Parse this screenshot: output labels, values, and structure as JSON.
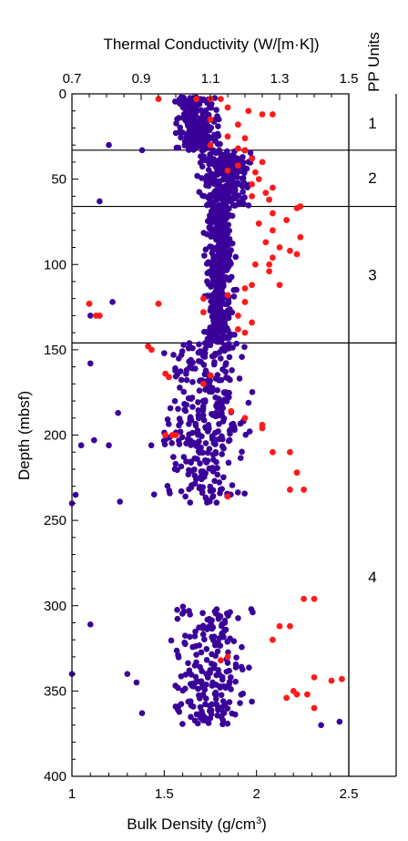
{
  "chart_data": {
    "type": "scatter",
    "xlabel_bottom": "Bulk Density (g/cm",
    "xlabel_bottom_sup": "3",
    "xlabel_bottom_end": ")",
    "xlabel_top": "Thermal Conductivity (W/[m·K])",
    "ylabel": "Depth (mbsf)",
    "pp_header": "PP Units",
    "x_bottom_range": [
      1.0,
      2.5
    ],
    "x_top_range": [
      0.7,
      1.5
    ],
    "y_range": [
      400,
      0
    ],
    "x_bottom_ticks": [
      "1",
      "1.5",
      "2",
      "2.5"
    ],
    "x_top_ticks": [
      "0.7",
      "0.9",
      "1.1",
      "1.3",
      "1.5"
    ],
    "y_ticks": [
      "0",
      "50",
      "100",
      "150",
      "200",
      "250",
      "300",
      "350",
      "400"
    ],
    "unit_boundaries": [
      33,
      66,
      146
    ],
    "units": [
      {
        "label": "1",
        "depth": 17
      },
      {
        "label": "2",
        "depth": 49
      },
      {
        "label": "3",
        "depth": 106
      },
      {
        "label": "4",
        "depth": 283
      }
    ],
    "colors": {
      "density": "#3a0099",
      "conductivity": "#ff1a1a"
    },
    "density_clusters": [
      {
        "d0": 2,
        "d1": 33,
        "mean": 1.68,
        "spread": 0.14,
        "n": 240
      },
      {
        "d0": 33,
        "d1": 66,
        "mean": 1.82,
        "spread": 0.18,
        "n": 260
      },
      {
        "d0": 66,
        "d1": 146,
        "mean": 1.8,
        "spread": 0.1,
        "n": 420
      },
      {
        "d0": 146,
        "d1": 240,
        "mean": 1.72,
        "spread": 0.3,
        "n": 320
      },
      {
        "d0": 300,
        "d1": 370,
        "mean": 1.75,
        "spread": 0.28,
        "n": 200
      }
    ],
    "density_outliers": [
      [
        1.2,
        30
      ],
      [
        1.38,
        33
      ],
      [
        1.15,
        63
      ],
      [
        1.22,
        122
      ],
      [
        1.1,
        130
      ],
      [
        1.1,
        158
      ],
      [
        1.5,
        152
      ],
      [
        1.25,
        187
      ],
      [
        1.12,
        203
      ],
      [
        1.05,
        206
      ],
      [
        1.2,
        206
      ],
      [
        1.43,
        206
      ],
      [
        1.02,
        235
      ],
      [
        1.26,
        239
      ],
      [
        1.0,
        240
      ],
      [
        1.1,
        311
      ],
      [
        1.0,
        340
      ],
      [
        1.3,
        340
      ],
      [
        1.35,
        345
      ],
      [
        1.38,
        363
      ],
      [
        2.35,
        370
      ],
      [
        2.45,
        368
      ]
    ],
    "conductivity_points": [
      [
        0.95,
        3
      ],
      [
        1.06,
        3
      ],
      [
        1.1,
        3
      ],
      [
        1.13,
        3
      ],
      [
        1.15,
        8
      ],
      [
        1.21,
        10
      ],
      [
        1.25,
        12
      ],
      [
        1.28,
        12
      ],
      [
        1.1,
        15
      ],
      [
        1.18,
        18
      ],
      [
        1.15,
        25
      ],
      [
        1.2,
        26
      ],
      [
        1.1,
        30
      ],
      [
        1.18,
        32
      ],
      [
        1.2,
        33
      ],
      [
        1.22,
        38
      ],
      [
        1.25,
        40
      ],
      [
        1.18,
        42
      ],
      [
        1.15,
        45
      ],
      [
        1.23,
        46
      ],
      [
        1.24,
        50
      ],
      [
        1.22,
        53
      ],
      [
        1.28,
        55
      ],
      [
        1.26,
        58
      ],
      [
        1.22,
        60
      ],
      [
        1.27,
        62
      ],
      [
        1.35,
        67
      ],
      [
        1.36,
        66
      ],
      [
        1.28,
        70
      ],
      [
        1.32,
        74
      ],
      [
        1.24,
        76
      ],
      [
        1.28,
        80
      ],
      [
        1.36,
        84
      ],
      [
        1.26,
        87
      ],
      [
        1.3,
        90
      ],
      [
        1.33,
        92
      ],
      [
        1.35,
        94
      ],
      [
        1.28,
        96
      ],
      [
        1.23,
        100
      ],
      [
        1.27,
        100
      ],
      [
        1.27,
        104
      ],
      [
        1.3,
        112
      ],
      [
        1.22,
        112
      ],
      [
        1.2,
        114
      ],
      [
        1.15,
        118
      ],
      [
        1.08,
        120
      ],
      [
        1.2,
        122
      ],
      [
        0.95,
        123
      ],
      [
        0.75,
        123
      ],
      [
        1.08,
        128
      ],
      [
        0.77,
        130
      ],
      [
        0.78,
        130
      ],
      [
        1.18,
        130
      ],
      [
        1.22,
        134
      ],
      [
        1.18,
        138
      ],
      [
        1.2,
        140
      ],
      [
        0.92,
        148
      ],
      [
        0.93,
        150
      ],
      [
        0.97,
        164
      ],
      [
        0.98,
        166
      ],
      [
        1.1,
        165
      ],
      [
        1.08,
        170
      ],
      [
        1.16,
        186
      ],
      [
        1.2,
        190
      ],
      [
        1.25,
        194
      ],
      [
        1.25,
        196
      ],
      [
        0.97,
        200
      ],
      [
        0.99,
        200
      ],
      [
        1.0,
        200
      ],
      [
        1.28,
        210
      ],
      [
        1.33,
        210
      ],
      [
        1.35,
        222
      ],
      [
        1.33,
        232
      ],
      [
        1.37,
        232
      ],
      [
        1.15,
        236
      ],
      [
        1.37,
        296
      ],
      [
        1.4,
        296
      ],
      [
        1.3,
        312
      ],
      [
        1.33,
        312
      ],
      [
        1.28,
        320
      ],
      [
        1.15,
        330
      ],
      [
        1.13,
        332
      ],
      [
        1.4,
        342
      ],
      [
        1.45,
        344
      ],
      [
        1.48,
        343
      ],
      [
        1.34,
        350
      ],
      [
        1.35,
        352
      ],
      [
        1.38,
        352
      ],
      [
        1.32,
        354
      ],
      [
        1.4,
        360
      ]
    ]
  }
}
